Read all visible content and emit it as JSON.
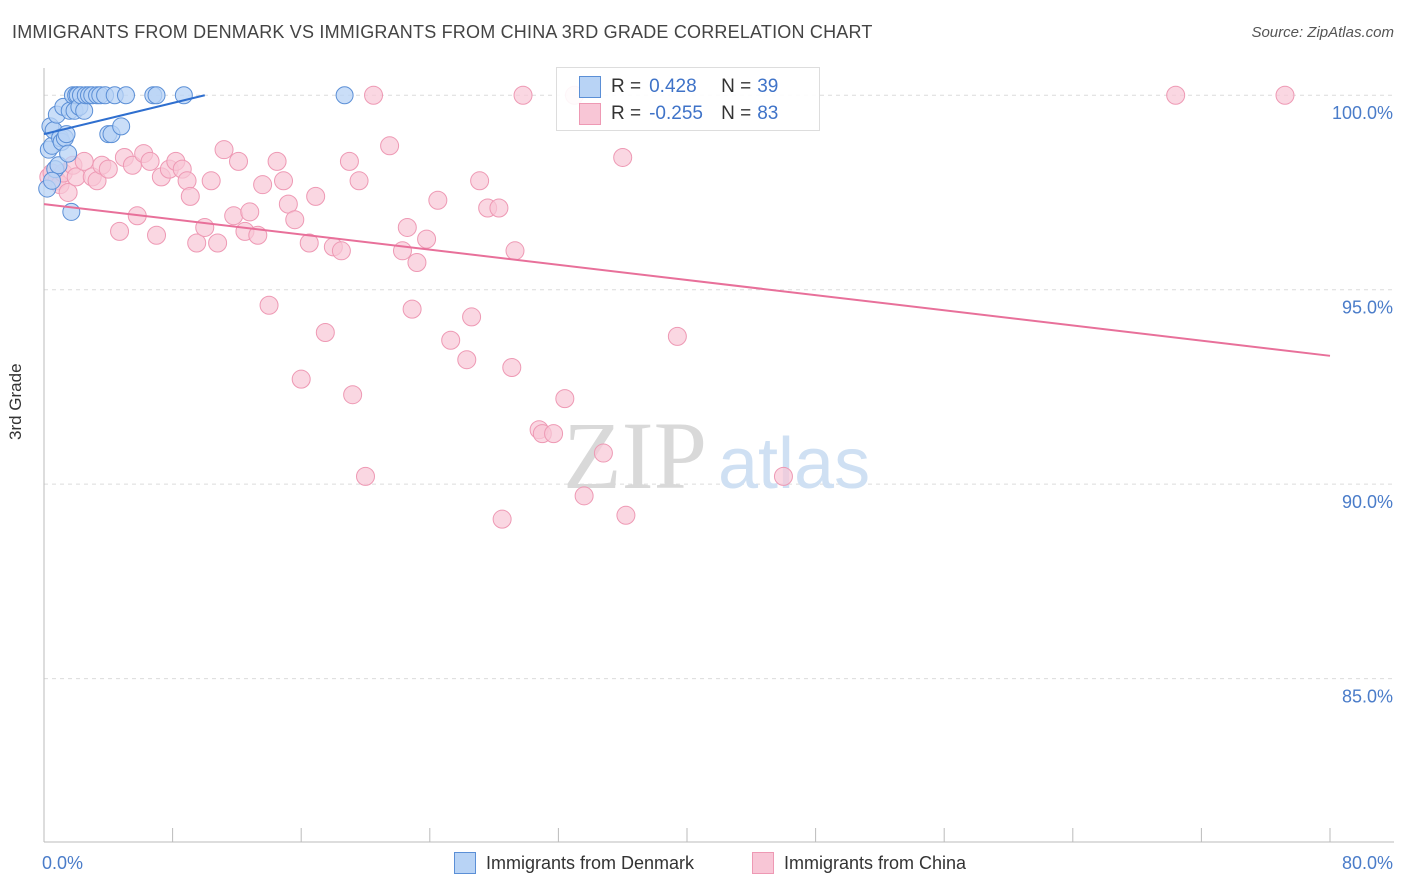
{
  "header": {
    "title": "IMMIGRANTS FROM DENMARK VS IMMIGRANTS FROM CHINA 3RD GRADE CORRELATION CHART",
    "source": "Source: ZipAtlas.com"
  },
  "watermark": {
    "zip": "ZIP",
    "atlas": "atlas"
  },
  "legend_top": {
    "rows": [
      {
        "r_label": "R =",
        "r_value": "0.428",
        "n_label": "N =",
        "n_value": "39"
      },
      {
        "r_label": "R =",
        "r_value": "-0.255",
        "n_label": "N =",
        "n_value": "83"
      }
    ]
  },
  "legend_bottom": {
    "denmark": "Immigrants from Denmark",
    "china": "Immigrants from China"
  },
  "colors": {
    "denmark_fill": "#b8d3f5",
    "denmark_stroke": "#5b8fd6",
    "denmark_line": "#2f6fcf",
    "china_fill": "#f8c6d6",
    "china_stroke": "#ee99b4",
    "china_line": "#e8709a",
    "tick_text": "#4a7cc9"
  },
  "chart_data": {
    "type": "scatter",
    "title": "IMMIGRANTS FROM DENMARK VS IMMIGRANTS FROM CHINA 3RD GRADE CORRELATION CHART",
    "xlabel": "",
    "ylabel": "3rd Grade",
    "xlim": [
      0,
      80
    ],
    "ylim": [
      80.8,
      100.7
    ],
    "x_tick_labels": [
      {
        "value": 0,
        "label": "0.0%"
      },
      {
        "value": 80,
        "label": "80.0%"
      }
    ],
    "y_tick_labels": [
      {
        "value": 100,
        "label": "100.0%"
      },
      {
        "value": 95,
        "label": "95.0%"
      },
      {
        "value": 90,
        "label": "90.0%"
      },
      {
        "value": 85,
        "label": "85.0%"
      }
    ],
    "x_minor_ticks": [
      0,
      8,
      16,
      24,
      32,
      40,
      48,
      56,
      64,
      72,
      80
    ],
    "grid": true,
    "series": [
      {
        "name": "Immigrants from Denmark",
        "r": 0.428,
        "n": 39,
        "trend": {
          "x": [
            0,
            10
          ],
          "y": [
            99.0,
            100.0
          ]
        },
        "points": [
          [
            0.2,
            97.6
          ],
          [
            0.3,
            98.6
          ],
          [
            0.4,
            99.2
          ],
          [
            0.5,
            98.7
          ],
          [
            0.6,
            99.1
          ],
          [
            0.7,
            98.1
          ],
          [
            0.8,
            99.5
          ],
          [
            0.9,
            98.2
          ],
          [
            1.0,
            98.9
          ],
          [
            1.1,
            98.8
          ],
          [
            1.2,
            99.7
          ],
          [
            1.3,
            98.9
          ],
          [
            1.4,
            99.0
          ],
          [
            1.5,
            98.5
          ],
          [
            1.6,
            99.6
          ],
          [
            1.7,
            97.0
          ],
          [
            1.8,
            100.0
          ],
          [
            1.9,
            99.6
          ],
          [
            2.0,
            100.0
          ],
          [
            2.1,
            100.0
          ],
          [
            2.2,
            99.7
          ],
          [
            2.3,
            100.0
          ],
          [
            2.5,
            99.6
          ],
          [
            2.6,
            100.0
          ],
          [
            2.8,
            100.0
          ],
          [
            3.0,
            100.0
          ],
          [
            3.3,
            100.0
          ],
          [
            3.5,
            100.0
          ],
          [
            3.8,
            100.0
          ],
          [
            4.0,
            99.0
          ],
          [
            4.2,
            99.0
          ],
          [
            4.4,
            100.0
          ],
          [
            4.8,
            99.2
          ],
          [
            5.1,
            100.0
          ],
          [
            6.8,
            100.0
          ],
          [
            7.0,
            100.0
          ],
          [
            8.7,
            100.0
          ],
          [
            18.7,
            100.0
          ],
          [
            0.5,
            97.8
          ]
        ]
      },
      {
        "name": "Immigrants from China",
        "r": -0.255,
        "n": 83,
        "trend": {
          "x": [
            0,
            80
          ],
          "y": [
            97.2,
            93.3
          ]
        },
        "points": [
          [
            0.3,
            97.9
          ],
          [
            0.5,
            98.0
          ],
          [
            0.8,
            97.8
          ],
          [
            1.0,
            97.7
          ],
          [
            1.2,
            98.0
          ],
          [
            1.5,
            97.5
          ],
          [
            1.8,
            98.2
          ],
          [
            2.0,
            97.9
          ],
          [
            2.5,
            98.3
          ],
          [
            3.0,
            97.9
          ],
          [
            3.3,
            97.8
          ],
          [
            3.6,
            98.2
          ],
          [
            4.0,
            98.1
          ],
          [
            4.7,
            96.5
          ],
          [
            5.0,
            98.4
          ],
          [
            5.5,
            98.2
          ],
          [
            5.8,
            96.9
          ],
          [
            6.2,
            98.5
          ],
          [
            6.6,
            98.3
          ],
          [
            7.0,
            96.4
          ],
          [
            7.3,
            97.9
          ],
          [
            7.8,
            98.1
          ],
          [
            8.2,
            98.3
          ],
          [
            8.6,
            98.1
          ],
          [
            8.9,
            97.8
          ],
          [
            9.1,
            97.4
          ],
          [
            9.5,
            96.2
          ],
          [
            10.0,
            96.6
          ],
          [
            10.4,
            97.8
          ],
          [
            10.8,
            96.2
          ],
          [
            11.2,
            98.6
          ],
          [
            11.8,
            96.9
          ],
          [
            12.1,
            98.3
          ],
          [
            12.5,
            96.5
          ],
          [
            12.8,
            97.0
          ],
          [
            13.3,
            96.4
          ],
          [
            13.6,
            97.7
          ],
          [
            14.0,
            94.6
          ],
          [
            14.5,
            98.3
          ],
          [
            14.9,
            97.8
          ],
          [
            15.2,
            97.2
          ],
          [
            15.6,
            96.8
          ],
          [
            16.0,
            92.7
          ],
          [
            16.5,
            96.2
          ],
          [
            16.9,
            97.4
          ],
          [
            17.5,
            93.9
          ],
          [
            18.0,
            96.1
          ],
          [
            18.5,
            96.0
          ],
          [
            19.0,
            98.3
          ],
          [
            19.2,
            92.3
          ],
          [
            19.6,
            97.8
          ],
          [
            20.0,
            90.2
          ],
          [
            20.5,
            100.0
          ],
          [
            21.5,
            98.7
          ],
          [
            22.3,
            96.0
          ],
          [
            22.6,
            96.6
          ],
          [
            22.9,
            94.5
          ],
          [
            23.2,
            95.7
          ],
          [
            23.8,
            96.3
          ],
          [
            24.5,
            97.3
          ],
          [
            25.3,
            93.7
          ],
          [
            26.3,
            93.2
          ],
          [
            26.6,
            94.3
          ],
          [
            27.1,
            97.8
          ],
          [
            27.6,
            97.1
          ],
          [
            28.3,
            97.1
          ],
          [
            28.5,
            89.1
          ],
          [
            29.1,
            93.0
          ],
          [
            29.3,
            96.0
          ],
          [
            29.8,
            100.0
          ],
          [
            30.8,
            91.4
          ],
          [
            31.0,
            91.3
          ],
          [
            31.7,
            91.3
          ],
          [
            32.4,
            92.2
          ],
          [
            33.0,
            100.0
          ],
          [
            33.6,
            89.7
          ],
          [
            34.8,
            90.8
          ],
          [
            36.0,
            98.4
          ],
          [
            36.2,
            89.2
          ],
          [
            39.4,
            93.8
          ],
          [
            46.0,
            90.2
          ],
          [
            70.4,
            100.0
          ],
          [
            77.2,
            100.0
          ]
        ]
      }
    ]
  }
}
